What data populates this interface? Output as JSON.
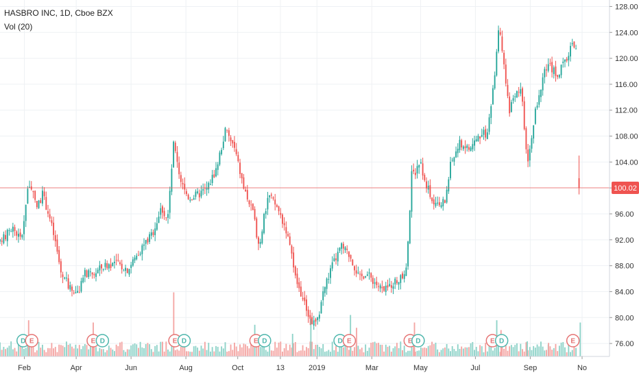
{
  "legend": {
    "line1": "HASBRO INC, 1D, Cboe BZX",
    "line2": "Vol (20)"
  },
  "colors": {
    "up": "#26a69a",
    "down": "#ef5350",
    "up_vol": "#8fd3c9",
    "down_vol": "#f4a6a4",
    "price_line": "#ef5350",
    "grid": "#eef1f4",
    "earnings": "#e57373",
    "dividend": "#4db6ac"
  },
  "chart_data": {
    "type": "candlestick",
    "title": "HASBRO INC, 1D, Cboe BZX",
    "subtitle": "Vol (20)",
    "ylim": [
      74,
      129
    ],
    "y_ticks": [
      76.0,
      80.0,
      84.0,
      88.0,
      92.0,
      96.0,
      100.0,
      104.0,
      108.0,
      112.0,
      116.0,
      120.0,
      124.0,
      128.0
    ],
    "x_ticks": [
      {
        "label": "Feb",
        "t": 0.04
      },
      {
        "label": "Apr",
        "t": 0.125
      },
      {
        "label": "Jun",
        "t": 0.215
      },
      {
        "label": "Aug",
        "t": 0.305
      },
      {
        "label": "Oct",
        "t": 0.39
      },
      {
        "label": "13",
        "t": 0.46
      },
      {
        "label": "2019",
        "t": 0.52
      },
      {
        "label": "Mar",
        "t": 0.61
      },
      {
        "label": "May",
        "t": 0.69
      },
      {
        "label": "Jul",
        "t": 0.78
      },
      {
        "label": "Sep",
        "t": 0.87
      },
      {
        "label": "No",
        "t": 0.955
      }
    ],
    "last_price": 100.02,
    "last_price_label": "100.02",
    "price_path": [
      [
        0.0,
        91.5
      ],
      [
        0.02,
        94.0
      ],
      [
        0.035,
        92.0
      ],
      [
        0.047,
        101.0
      ],
      [
        0.06,
        97.0
      ],
      [
        0.07,
        99.0
      ],
      [
        0.08,
        96.0
      ],
      [
        0.09,
        92.0
      ],
      [
        0.1,
        87.0
      ],
      [
        0.115,
        84.5
      ],
      [
        0.13,
        84.0
      ],
      [
        0.14,
        87.0
      ],
      [
        0.15,
        86.5
      ],
      [
        0.17,
        88.0
      ],
      [
        0.19,
        88.5
      ],
      [
        0.21,
        87.5
      ],
      [
        0.23,
        90.5
      ],
      [
        0.25,
        93.0
      ],
      [
        0.265,
        97.0
      ],
      [
        0.275,
        95.0
      ],
      [
        0.285,
        107.0
      ],
      [
        0.295,
        101.0
      ],
      [
        0.31,
        98.5
      ],
      [
        0.325,
        99.0
      ],
      [
        0.34,
        100.0
      ],
      [
        0.355,
        103.0
      ],
      [
        0.37,
        109.0
      ],
      [
        0.385,
        106.0
      ],
      [
        0.4,
        100.0
      ],
      [
        0.415,
        96.0
      ],
      [
        0.425,
        91.0
      ],
      [
        0.44,
        99.0
      ],
      [
        0.455,
        97.0
      ],
      [
        0.47,
        93.5
      ],
      [
        0.485,
        86.0
      ],
      [
        0.5,
        82.0
      ],
      [
        0.51,
        79.5
      ],
      [
        0.52,
        79.0
      ],
      [
        0.53,
        84.0
      ],
      [
        0.545,
        88.0
      ],
      [
        0.56,
        91.0
      ],
      [
        0.575,
        89.5
      ],
      [
        0.59,
        86.0
      ],
      [
        0.6,
        87.0
      ],
      [
        0.615,
        85.5
      ],
      [
        0.63,
        84.0
      ],
      [
        0.645,
        85.5
      ],
      [
        0.66,
        86.0
      ],
      [
        0.668,
        88.5
      ],
      [
        0.675,
        102.0
      ],
      [
        0.69,
        103.5
      ],
      [
        0.705,
        99.0
      ],
      [
        0.715,
        97.0
      ],
      [
        0.73,
        98.0
      ],
      [
        0.74,
        104.0
      ],
      [
        0.755,
        107.0
      ],
      [
        0.77,
        106.0
      ],
      [
        0.785,
        108.0
      ],
      [
        0.8,
        108.5
      ],
      [
        0.81,
        116.0
      ],
      [
        0.818,
        125.0
      ],
      [
        0.825,
        120.0
      ],
      [
        0.835,
        112.0
      ],
      [
        0.845,
        114.0
      ],
      [
        0.855,
        115.0
      ],
      [
        0.865,
        104.0
      ],
      [
        0.875,
        110.0
      ],
      [
        0.89,
        117.0
      ],
      [
        0.9,
        119.0
      ],
      [
        0.915,
        117.5
      ],
      [
        0.93,
        120.0
      ],
      [
        0.94,
        123.0
      ],
      [
        0.945,
        121.0
      ],
      [
        0.95,
        100.02
      ]
    ],
    "volume_spikes": [
      {
        "t": 0.047,
        "v": 0.48
      },
      {
        "t": 0.153,
        "v": 0.45
      },
      {
        "t": 0.285,
        "v": 0.85
      },
      {
        "t": 0.418,
        "v": 0.42
      },
      {
        "t": 0.48,
        "v": 0.3
      },
      {
        "t": 0.51,
        "v": 0.5
      },
      {
        "t": 0.575,
        "v": 0.55
      },
      {
        "t": 0.585,
        "v": 0.38
      },
      {
        "t": 0.68,
        "v": 0.45
      },
      {
        "t": 0.815,
        "v": 0.48
      },
      {
        "t": 0.822,
        "v": 0.35
      },
      {
        "t": 0.865,
        "v": 0.2
      },
      {
        "t": 0.9,
        "v": 0.18
      },
      {
        "t": 0.952,
        "v": 0.45
      }
    ],
    "events": [
      {
        "t": 0.038,
        "label": "D",
        "kind": "dividend"
      },
      {
        "t": 0.052,
        "label": "E",
        "kind": "earnings"
      },
      {
        "t": 0.153,
        "label": "E",
        "kind": "earnings"
      },
      {
        "t": 0.168,
        "label": "D",
        "kind": "dividend"
      },
      {
        "t": 0.287,
        "label": "E",
        "kind": "earnings"
      },
      {
        "t": 0.302,
        "label": "D",
        "kind": "dividend"
      },
      {
        "t": 0.42,
        "label": "E",
        "kind": "earnings"
      },
      {
        "t": 0.434,
        "label": "D",
        "kind": "dividend"
      },
      {
        "t": 0.558,
        "label": "D",
        "kind": "dividend"
      },
      {
        "t": 0.573,
        "label": "E",
        "kind": "earnings"
      },
      {
        "t": 0.673,
        "label": "E",
        "kind": "earnings"
      },
      {
        "t": 0.686,
        "label": "D",
        "kind": "dividend"
      },
      {
        "t": 0.808,
        "label": "E",
        "kind": "earnings"
      },
      {
        "t": 0.823,
        "label": "D",
        "kind": "dividend"
      },
      {
        "t": 0.94,
        "label": "E",
        "kind": "earnings"
      }
    ]
  }
}
